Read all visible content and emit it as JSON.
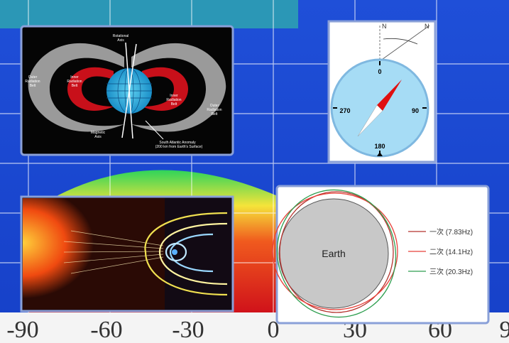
{
  "map": {
    "x_axis_labels": [
      "-90",
      "-60",
      "-30",
      "0",
      "30",
      "60",
      "9"
    ]
  },
  "radiation_belts": {
    "rotational_axis": [
      "Rotational",
      "Axis"
    ],
    "outer_left": [
      "Outer",
      "Radiation",
      "Belt"
    ],
    "inner_left": [
      "Inner",
      "Radiation",
      "Belt"
    ],
    "inner_right": [
      "Inner",
      "Radiation",
      "Belt"
    ],
    "outer_right": [
      "Outer",
      "Radiation",
      "Belt"
    ],
    "magnetic_axis": [
      "Magnetic",
      "Axis"
    ],
    "anomaly": [
      "South Atlantic Anomaly",
      "(200 km from Earth's Surface)"
    ]
  },
  "compass": {
    "north_labels": [
      "N",
      "N"
    ],
    "labels": {
      "top": "0",
      "right": "90",
      "bottom": "180",
      "left": "270"
    }
  },
  "resonance": {
    "earth": "Earth",
    "legend": [
      {
        "name": "一次 (7.83Hz)",
        "color": "#b5332e"
      },
      {
        "name": "二次 (14.1Hz)",
        "color": "#e8413a"
      },
      {
        "name": "三次 (20.3Hz)",
        "color": "#2e9e4f"
      }
    ]
  }
}
